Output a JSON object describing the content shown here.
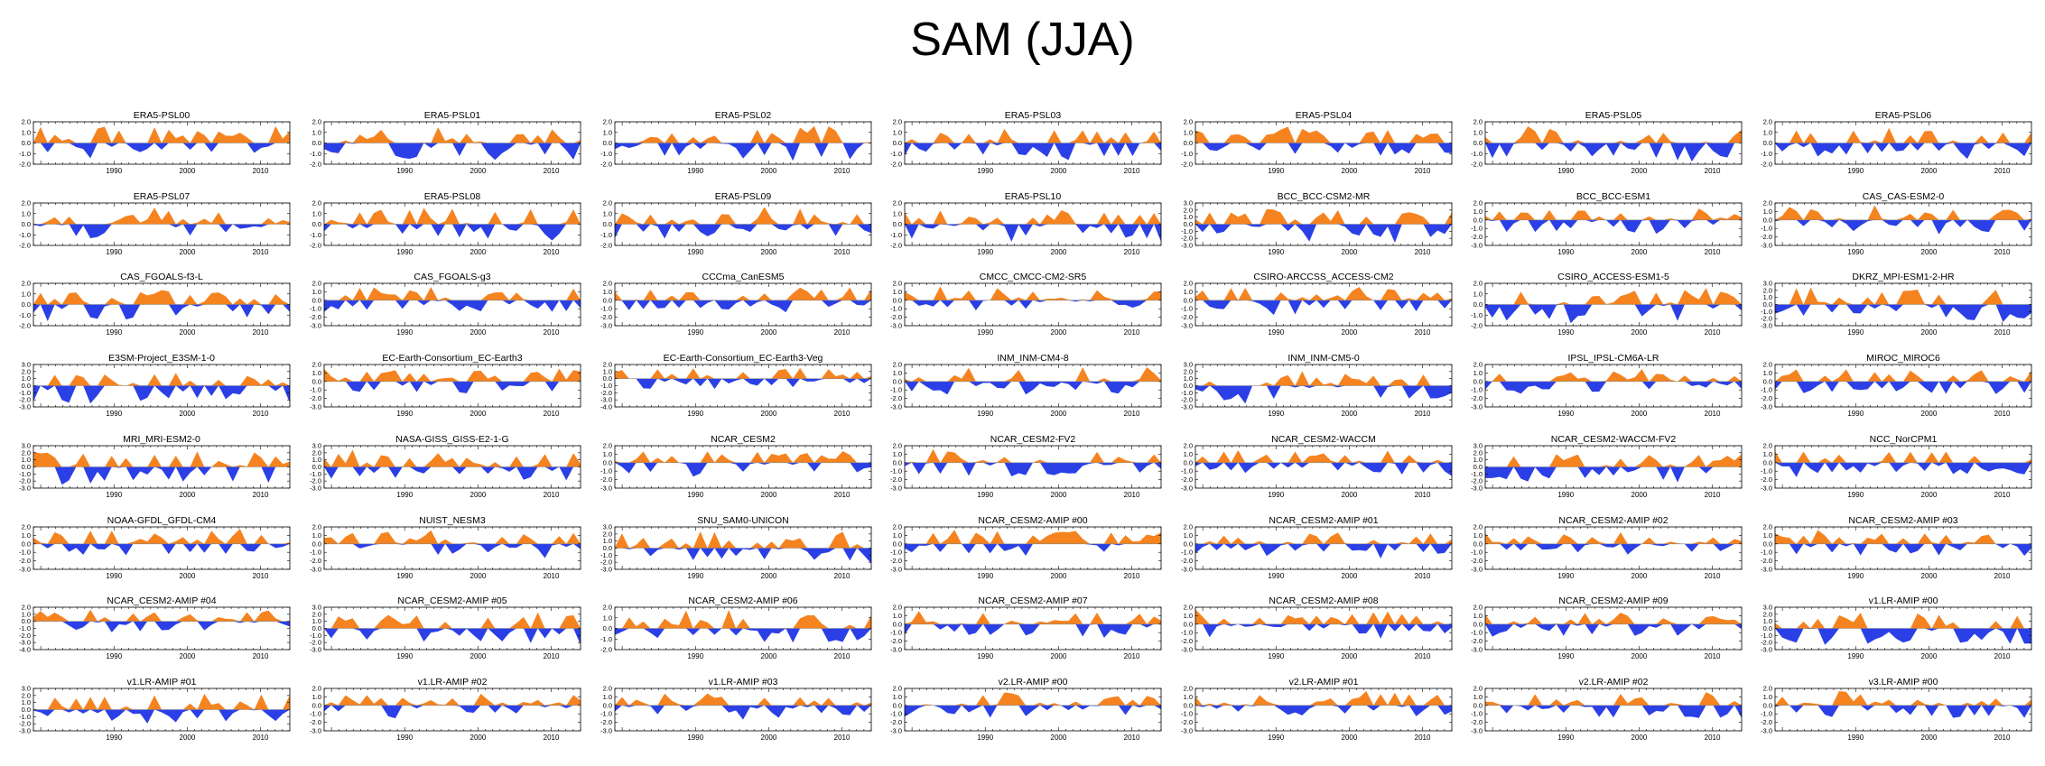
{
  "figure": {
    "title": "SAM (JJA)"
  },
  "chart_data": {
    "type": "area",
    "title": "SAM (JJA)",
    "xlabel": "",
    "ylabel": "",
    "xlim": [
      1979,
      2014
    ],
    "xticks": [
      1990,
      2000,
      2010
    ],
    "colors": {
      "positive": "#f5831f",
      "negative": "#2b3fe6",
      "axis": "#000000",
      "zero_line": "#888888"
    },
    "panels": [
      {
        "title": "ERA5-PSL00",
        "yticks": [
          "2.0",
          "1.0",
          "0.0",
          "-1.0",
          "-2.0"
        ],
        "ylim": [
          -2,
          2
        ]
      },
      {
        "title": "ERA5-PSL01",
        "yticks": [
          "2.0",
          "1.0",
          "0.0",
          "-1.0",
          "-2.0"
        ],
        "ylim": [
          -2,
          2
        ]
      },
      {
        "title": "ERA5-PSL02",
        "yticks": [
          "2.0",
          "1.0",
          "0.0",
          "-1.0",
          "-2.0"
        ],
        "ylim": [
          -2,
          2
        ]
      },
      {
        "title": "ERA5-PSL03",
        "yticks": [
          "2.0",
          "1.0",
          "0.0",
          "-1.0",
          "-2.0"
        ],
        "ylim": [
          -2,
          2
        ]
      },
      {
        "title": "ERA5-PSL04",
        "yticks": [
          "2.0",
          "1.0",
          "0.0",
          "-1.0",
          "-2.0"
        ],
        "ylim": [
          -2,
          2
        ]
      },
      {
        "title": "ERA5-PSL05",
        "yticks": [
          "2.0",
          "1.0",
          "0.0",
          "-1.0",
          "-2.0"
        ],
        "ylim": [
          -2,
          2
        ]
      },
      {
        "title": "ERA5-PSL06",
        "yticks": [
          "2.0",
          "1.0",
          "0.0",
          "-1.0",
          "-2.0"
        ],
        "ylim": [
          -2,
          2
        ]
      },
      {
        "title": "ERA5-PSL07",
        "yticks": [
          "2.0",
          "1.0",
          "0.0",
          "-1.0",
          "-2.0"
        ],
        "ylim": [
          -2,
          2
        ]
      },
      {
        "title": "ERA5-PSL08",
        "yticks": [
          "2.0",
          "1.0",
          "0.0",
          "-1.0",
          "-2.0"
        ],
        "ylim": [
          -2,
          2
        ]
      },
      {
        "title": "ERA5-PSL09",
        "yticks": [
          "2.0",
          "1.0",
          "0.0",
          "-1.0",
          "-2.0"
        ],
        "ylim": [
          -2,
          2
        ]
      },
      {
        "title": "ERA5-PSL10",
        "yticks": [
          "2.0",
          "1.0",
          "0.0",
          "-1.0",
          "-2.0"
        ],
        "ylim": [
          -2,
          2
        ]
      },
      {
        "title": "BCC_BCC-CSM2-MR",
        "yticks": [
          "3.0",
          "2.0",
          "1.0",
          "0.0",
          "-1.0",
          "-2.0",
          "-3.0"
        ],
        "ylim": [
          -3,
          3
        ]
      },
      {
        "title": "BCC_BCC-ESM1",
        "yticks": [
          "2.0",
          "1.0",
          "0.0",
          "-1.0",
          "-2.0",
          "-3.0"
        ],
        "ylim": [
          -3,
          2
        ]
      },
      {
        "title": "CAS_CAS-ESM2-0",
        "yticks": [
          "2.0",
          "1.0",
          "0.0",
          "-1.0",
          "-2.0",
          "-3.0"
        ],
        "ylim": [
          -3,
          2
        ]
      },
      {
        "title": "CAS_FGOALS-f3-L",
        "yticks": [
          "2.0",
          "1.0",
          "0.0",
          "-1.0",
          "-2.0"
        ],
        "ylim": [
          -2,
          2
        ]
      },
      {
        "title": "CAS_FGOALS-g3",
        "yticks": [
          "2.0",
          "1.0",
          "0.0",
          "-1.0",
          "-2.0",
          "-3.0"
        ],
        "ylim": [
          -3,
          2
        ]
      },
      {
        "title": "CCCma_CanESM5",
        "yticks": [
          "2.0",
          "1.0",
          "0.0",
          "-1.0",
          "-2.0",
          "-3.0"
        ],
        "ylim": [
          -3,
          2
        ]
      },
      {
        "title": "CMCC_CMCC-CM2-SR5",
        "yticks": [
          "2.0",
          "1.0",
          "0.0",
          "-1.0",
          "-2.0",
          "-3.0"
        ],
        "ylim": [
          -3,
          2
        ]
      },
      {
        "title": "CSIRO-ARCCSS_ACCESS-CM2",
        "yticks": [
          "2.0",
          "1.0",
          "0.0",
          "-1.0",
          "-2.0",
          "-3.0"
        ],
        "ylim": [
          -3,
          2
        ]
      },
      {
        "title": "CSIRO_ACCESS-ESM1-5",
        "yticks": [
          "2.0",
          "1.0",
          "0.0",
          "-1.0",
          "-2.0"
        ],
        "ylim": [
          -2,
          2
        ]
      },
      {
        "title": "DKRZ_MPI-ESM1-2-HR",
        "yticks": [
          "3.0",
          "2.0",
          "1.0",
          "0.0",
          "-1.0",
          "-2.0",
          "-3.0"
        ],
        "ylim": [
          -3,
          3
        ]
      },
      {
        "title": "E3SM-Project_E3SM-1-0",
        "yticks": [
          "3.0",
          "2.0",
          "1.0",
          "0.0",
          "-1.0",
          "-2.0",
          "-3.0"
        ],
        "ylim": [
          -3,
          3
        ]
      },
      {
        "title": "EC-Earth-Consortium_EC-Earth3",
        "yticks": [
          "2.0",
          "1.0",
          "0.0",
          "-1.0",
          "-2.0",
          "-3.0"
        ],
        "ylim": [
          -3,
          2
        ]
      },
      {
        "title": "EC-Earth-Consortium_EC-Earth3-Veg",
        "yticks": [
          "2.0",
          "1.0",
          "0.0",
          "-1.0",
          "-2.0",
          "-3.0",
          "-4.0"
        ],
        "ylim": [
          -4,
          2
        ]
      },
      {
        "title": "INM_INM-CM4-8",
        "yticks": [
          "2.0",
          "1.0",
          "0.0",
          "-1.0",
          "-2.0",
          "-3.0"
        ],
        "ylim": [
          -3,
          2
        ]
      },
      {
        "title": "INM_INM-CM5-0",
        "yticks": [
          "3.0",
          "2.0",
          "1.0",
          "0.0",
          "-1.0",
          "-2.0",
          "-3.0"
        ],
        "ylim": [
          -3,
          3
        ]
      },
      {
        "title": "IPSL_IPSL-CM6A-LR",
        "yticks": [
          "2.0",
          "1.0",
          "0.0",
          "-1.0",
          "-2.0",
          "-3.0"
        ],
        "ylim": [
          -3,
          2
        ]
      },
      {
        "title": "MIROC_MIROC6",
        "yticks": [
          "2.0",
          "1.0",
          "0.0",
          "-1.0",
          "-2.0",
          "-3.0"
        ],
        "ylim": [
          -3,
          2
        ]
      },
      {
        "title": "MRI_MRI-ESM2-0",
        "yticks": [
          "3.0",
          "2.0",
          "1.0",
          "0.0",
          "-1.0",
          "-2.0",
          "-3.0"
        ],
        "ylim": [
          -3,
          3
        ]
      },
      {
        "title": "NASA-GISS_GISS-E2-1-G",
        "yticks": [
          "3.0",
          "2.0",
          "1.0",
          "0.0",
          "-1.0",
          "-2.0",
          "-3.0"
        ],
        "ylim": [
          -3,
          3
        ]
      },
      {
        "title": "NCAR_CESM2",
        "yticks": [
          "2.0",
          "1.0",
          "0.0",
          "-1.0",
          "-2.0",
          "-3.0"
        ],
        "ylim": [
          -3,
          2
        ]
      },
      {
        "title": "NCAR_CESM2-FV2",
        "yticks": [
          "2.0",
          "1.0",
          "0.0",
          "-1.0",
          "-2.0",
          "-3.0"
        ],
        "ylim": [
          -3,
          2
        ]
      },
      {
        "title": "NCAR_CESM2-WACCM",
        "yticks": [
          "2.0",
          "1.0",
          "0.0",
          "-1.0",
          "-2.0",
          "-3.0"
        ],
        "ylim": [
          -3,
          2
        ]
      },
      {
        "title": "NCAR_CESM2-WACCM-FV2",
        "yticks": [
          "3.0",
          "2.0",
          "1.0",
          "0.0",
          "-1.0",
          "-2.0",
          "-3.0"
        ],
        "ylim": [
          -3,
          3
        ]
      },
      {
        "title": "NCC_NorCPM1",
        "yticks": [
          "2.0",
          "1.0",
          "0.0",
          "-1.0",
          "-2.0",
          "-3.0"
        ],
        "ylim": [
          -3,
          2
        ]
      },
      {
        "title": "NOAA-GFDL_GFDL-CM4",
        "yticks": [
          "2.0",
          "1.0",
          "0.0",
          "-1.0",
          "-2.0",
          "-3.0"
        ],
        "ylim": [
          -3,
          2
        ]
      },
      {
        "title": "NUIST_NESM3",
        "yticks": [
          "2.0",
          "1.0",
          "0.0",
          "-1.0",
          "-2.0",
          "-3.0"
        ],
        "ylim": [
          -3,
          2
        ]
      },
      {
        "title": "SNU_SAM0-UNICON",
        "yticks": [
          "3.0",
          "2.0",
          "1.0",
          "0.0",
          "-1.0",
          "-2.0",
          "-3.0"
        ],
        "ylim": [
          -3,
          3
        ]
      },
      {
        "title": "NCAR_CESM2-AMIP  #00",
        "yticks": [
          "2.0",
          "1.0",
          "0.0",
          "-1.0",
          "-2.0",
          "-3.0"
        ],
        "ylim": [
          -3,
          2
        ]
      },
      {
        "title": "NCAR_CESM2-AMIP  #01",
        "yticks": [
          "2.0",
          "1.0",
          "0.0",
          "-1.0",
          "-2.0",
          "-3.0"
        ],
        "ylim": [
          -3,
          2
        ]
      },
      {
        "title": "NCAR_CESM2-AMIP  #02",
        "yticks": [
          "2.0",
          "1.0",
          "0.0",
          "-1.0",
          "-2.0",
          "-3.0"
        ],
        "ylim": [
          -3,
          2
        ]
      },
      {
        "title": "NCAR_CESM2-AMIP  #03",
        "yticks": [
          "2.0",
          "1.0",
          "0.0",
          "-1.0",
          "-2.0",
          "-3.0"
        ],
        "ylim": [
          -3,
          2
        ]
      },
      {
        "title": "NCAR_CESM2-AMIP  #04",
        "yticks": [
          "2.0",
          "1.0",
          "0.0",
          "-1.0",
          "-2.0",
          "-3.0",
          "-4.0"
        ],
        "ylim": [
          -4,
          2
        ]
      },
      {
        "title": "NCAR_CESM2-AMIP  #05",
        "yticks": [
          "3.0",
          "2.0",
          "1.0",
          "0.0",
          "-1.0",
          "-2.0",
          "-3.0"
        ],
        "ylim": [
          -3,
          3
        ]
      },
      {
        "title": "NCAR_CESM2-AMIP  #06",
        "yticks": [
          "2.0",
          "1.0",
          "0.0",
          "-1.0",
          "-2.0"
        ],
        "ylim": [
          -2,
          2
        ]
      },
      {
        "title": "NCAR_CESM2-AMIP  #07",
        "yticks": [
          "2.0",
          "1.0",
          "0.0",
          "-1.0",
          "-2.0",
          "-3.0"
        ],
        "ylim": [
          -3,
          2
        ]
      },
      {
        "title": "NCAR_CESM2-AMIP  #08",
        "yticks": [
          "2.0",
          "1.0",
          "0.0",
          "-1.0",
          "-2.0",
          "-3.0"
        ],
        "ylim": [
          -3,
          2
        ]
      },
      {
        "title": "NCAR_CESM2-AMIP  #09",
        "yticks": [
          "2.0",
          "1.0",
          "0.0",
          "-1.0",
          "-2.0",
          "-3.0"
        ],
        "ylim": [
          -3,
          2
        ]
      },
      {
        "title": "v1.LR-AMIP  #00",
        "yticks": [
          "3.0",
          "2.0",
          "1.0",
          "0.0",
          "-1.0",
          "-2.0",
          "-3.0"
        ],
        "ylim": [
          -3,
          3
        ]
      },
      {
        "title": "v1.LR-AMIP  #01",
        "yticks": [
          "3.0",
          "2.0",
          "1.0",
          "0.0",
          "-1.0",
          "-2.0",
          "-3.0"
        ],
        "ylim": [
          -3,
          3
        ]
      },
      {
        "title": "v1.LR-AMIP  #02",
        "yticks": [
          "2.0",
          "1.0",
          "0.0",
          "-1.0",
          "-2.0",
          "-3.0"
        ],
        "ylim": [
          -3,
          2
        ]
      },
      {
        "title": "v1.LR-AMIP  #03",
        "yticks": [
          "2.0",
          "1.0",
          "0.0",
          "-1.0",
          "-2.0",
          "-3.0"
        ],
        "ylim": [
          -3,
          2
        ]
      },
      {
        "title": "v2.LR-AMIP  #00",
        "yticks": [
          "2.0",
          "1.0",
          "0.0",
          "-1.0",
          "-2.0",
          "-3.0"
        ],
        "ylim": [
          -3,
          2
        ]
      },
      {
        "title": "v2.LR-AMIP  #01",
        "yticks": [
          "2.0",
          "1.0",
          "0.0",
          "-1.0",
          "-2.0",
          "-3.0"
        ],
        "ylim": [
          -3,
          2
        ]
      },
      {
        "title": "v2.LR-AMIP  #02",
        "yticks": [
          "2.0",
          "1.0",
          "0.0",
          "-1.0",
          "-2.0",
          "-3.0"
        ],
        "ylim": [
          -3,
          2
        ]
      },
      {
        "title": "v3.LR-AMIP  #00",
        "yticks": [
          "2.0",
          "1.0",
          "0.0",
          "-1.0",
          "-2.0",
          "-3.0"
        ],
        "ylim": [
          -3,
          2
        ]
      }
    ]
  }
}
